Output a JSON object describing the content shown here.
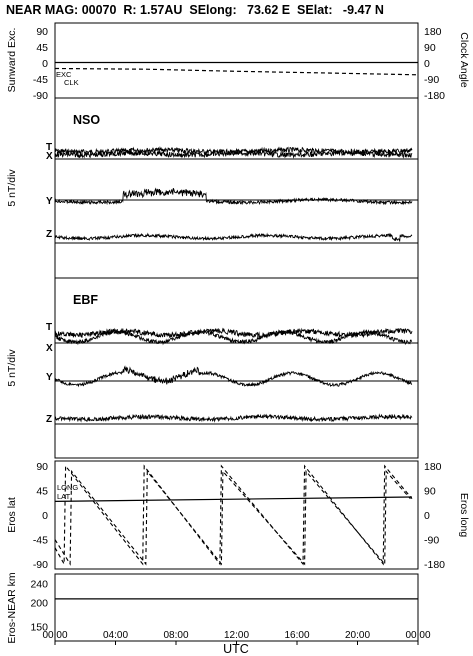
{
  "header": {
    "title": "NEAR MAG: 00070  R: 1.57AU  SElong:   73.62 E  SElat:   -9.47 N"
  },
  "panel1": {
    "left_label": "Sunward Exc.",
    "right_label": "Clock Angle",
    "left_ticks": [
      "90",
      "45",
      "0",
      "-45",
      "-90"
    ],
    "right_ticks": [
      "180",
      "90",
      "0",
      "-90",
      "-180"
    ],
    "exc_label": "EXC",
    "clk_label": "CLK"
  },
  "panel2": {
    "title": "NSO",
    "ylabel": "5 nT/div",
    "trace_labels": [
      "T",
      "X",
      "Y",
      "Z"
    ]
  },
  "panel3": {
    "title": "EBF",
    "ylabel": "5 nT/div",
    "trace_labels": [
      "T",
      "X",
      "Y",
      "Z"
    ]
  },
  "panel4": {
    "left_label": "Eros lat",
    "right_label": "Eros long",
    "left_ticks": [
      "90",
      "45",
      "0",
      "-45",
      "-90"
    ],
    "right_ticks": [
      "180",
      "90",
      "0",
      "-90",
      "-180"
    ],
    "long_label": "LONG",
    "lat_label": "LAT"
  },
  "panel5": {
    "ylabel": "Eros-NEAR km",
    "ticks": [
      "240",
      "200",
      "150"
    ]
  },
  "xaxis": {
    "label": "UTC",
    "ticks": [
      "00:00",
      "04:00",
      "08:00",
      "12:00",
      "16:00",
      "20:00",
      "00:00"
    ]
  },
  "chart_data": {
    "type": "line",
    "x_unit": "hours UTC",
    "xlim": [
      0,
      24
    ],
    "series": [
      {
        "name": "EXC",
        "x": [
          0,
          12,
          24
        ],
        "values": [
          -3,
          -3,
          -3
        ]
      },
      {
        "name": "CLK",
        "x": [
          0,
          6,
          12,
          18,
          24
        ],
        "values": [
          -20,
          -22,
          -28,
          -33,
          -38
        ]
      },
      {
        "name": "LAT",
        "x": [
          0,
          1,
          1.1,
          6,
          6.1,
          11,
          11.1,
          16.5,
          16.6,
          21.8,
          21.9,
          23.5
        ],
        "values": [
          -45,
          -90,
          80,
          -90,
          80,
          -90,
          80,
          -90,
          80,
          -90,
          80,
          30
        ]
      },
      {
        "name": "LONG",
        "x": [
          0,
          0.6,
          0.7,
          5.8,
          5.9,
          10.9,
          11.0,
          16.4,
          16.5,
          21.7,
          21.8,
          23.6
        ],
        "values": [
          -120,
          -180,
          180,
          -180,
          180,
          -180,
          180,
          -180,
          180,
          -180,
          180,
          60
        ]
      },
      {
        "name": "Eros-NEAR km",
        "x": [
          0,
          24
        ],
        "values": [
          208,
          208
        ]
      }
    ],
    "ylim_panel1": [
      -90,
      90
    ],
    "ylim_panel4": [
      -90,
      90
    ],
    "ylim_panel5": [
      120,
      260
    ]
  }
}
